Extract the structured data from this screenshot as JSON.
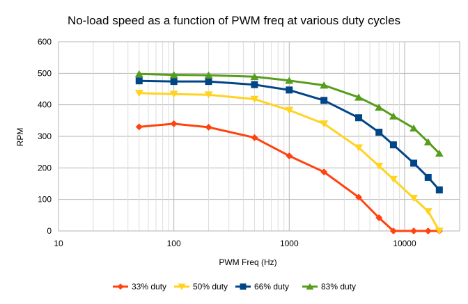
{
  "chart_data": {
    "type": "line",
    "title": "No-load speed as a function of PWM freq at various duty cycles",
    "xlabel": "PWM Freq (Hz)",
    "ylabel": "RPM",
    "x_scale": "log",
    "xlim": [
      10,
      30000
    ],
    "ylim": [
      0,
      600
    ],
    "x_ticks": [
      "10",
      "100",
      "1000",
      "10000"
    ],
    "y_ticks": [
      "0",
      "100",
      "200",
      "300",
      "400",
      "500",
      "600"
    ],
    "grid": true,
    "legend_position": "bottom",
    "x": [
      50,
      100,
      200,
      500,
      1000,
      2000,
      4000,
      6000,
      8000,
      12000,
      16000,
      20000
    ],
    "series": [
      {
        "name": "33% duty",
        "color": "#ff420e",
        "marker": "diamond",
        "values": [
          330,
          340,
          329,
          296,
          238,
          187,
          107,
          42,
          0,
          0,
          0,
          0
        ]
      },
      {
        "name": "50% duty",
        "color": "#ffd320",
        "marker": "triangle-down",
        "values": [
          437,
          434,
          432,
          418,
          383,
          340,
          264,
          206,
          164,
          104,
          62,
          0
        ]
      },
      {
        "name": "66% duty",
        "color": "#004586",
        "marker": "square",
        "values": [
          476,
          474,
          474,
          464,
          447,
          414,
          359,
          313,
          273,
          215,
          170,
          130
        ]
      },
      {
        "name": "83% duty",
        "color": "#579d1c",
        "marker": "triangle-up",
        "values": [
          498,
          495,
          494,
          489,
          477,
          462,
          424,
          392,
          364,
          326,
          282,
          246
        ]
      }
    ]
  }
}
